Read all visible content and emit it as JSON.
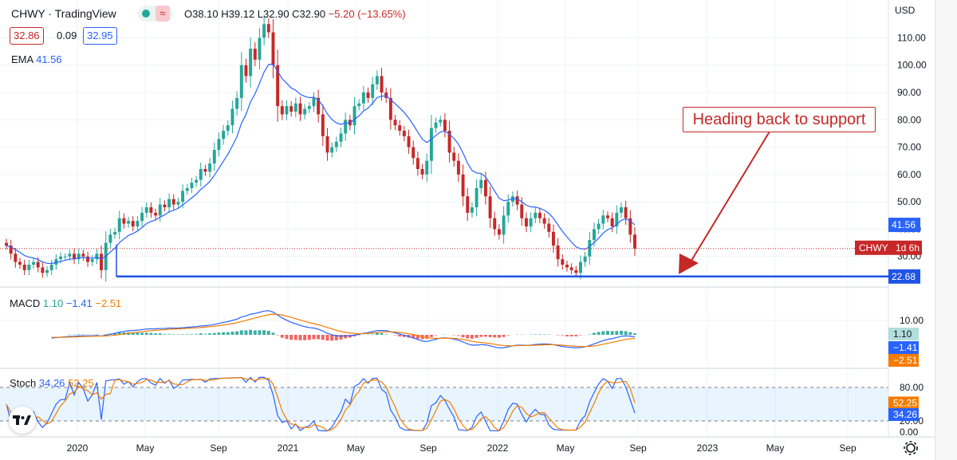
{
  "header": {
    "symbol_line": "CHWY · TradingView",
    "ohlc": "O38.10 H39.12 L32.90 C32.90",
    "change": "−5.20 (−13.65%)",
    "bid": "32.86",
    "spread": "0.09",
    "ask": "32.95",
    "ema_label": "EMA",
    "ema_value": "41.56",
    "pill_icon": "waves-icon"
  },
  "annotation": {
    "text": "Heading back to support"
  },
  "indicators": {
    "macd_label": "MACD",
    "macd_values": [
      "1.10",
      "−1.41",
      "−2.51"
    ],
    "stoch_label": "Stoch",
    "stoch_values": [
      "34.26",
      "52.25"
    ]
  },
  "colors": {
    "up": "#26a69a",
    "down": "#c62828",
    "ema": "#2962ff",
    "support": "#1e53e5",
    "macd": "#2962ff",
    "signal": "#f57c00",
    "stoch_k": "#2962ff",
    "stoch_d": "#f57c00"
  },
  "chart_data": [
    {
      "type": "candlestick",
      "symbol": "CHWY",
      "interval": "1 week",
      "x_ticks": [
        "2020",
        "May",
        "Sep",
        "2021",
        "May",
        "Sep",
        "2022",
        "May",
        "Sep",
        "2023",
        "May",
        "Sep"
      ],
      "currency": "USD",
      "y_ticks": [
        30,
        40,
        50,
        60,
        70,
        80,
        90,
        100,
        110
      ],
      "ylim": [
        20,
        118
      ],
      "closes": [
        34,
        31,
        28,
        27,
        25,
        27,
        28,
        26,
        24,
        25,
        27,
        29,
        30,
        30,
        31,
        29,
        31,
        30,
        28,
        29,
        31,
        25,
        35,
        38,
        39,
        44,
        42,
        43,
        41,
        43,
        46,
        48,
        46,
        45,
        49,
        48,
        51,
        49,
        50,
        54,
        55,
        57,
        58,
        62,
        61,
        64,
        69,
        73,
        76,
        78,
        84,
        88,
        100,
        96,
        106,
        102,
        110,
        115,
        112,
        100,
        85,
        82,
        85,
        83,
        86,
        82,
        84,
        85,
        88,
        82,
        74,
        68,
        70,
        72,
        75,
        80,
        78,
        85,
        86,
        90,
        88,
        93,
        96,
        90,
        88,
        80,
        78,
        76,
        74,
        70,
        66,
        62,
        60,
        65,
        77,
        79,
        80,
        76,
        68,
        65,
        60,
        52,
        46,
        48,
        55,
        58,
        52,
        44,
        40,
        38,
        45,
        50,
        52,
        49,
        44,
        41,
        44,
        46,
        44,
        42,
        39,
        34,
        29,
        27,
        26,
        25,
        24,
        28,
        30,
        36,
        40,
        42,
        45,
        44,
        41,
        46,
        48,
        44,
        38,
        32.9
      ],
      "ema_last": 41.56,
      "last_price": 32.9,
      "last_label": "CHWY",
      "last_tag": "1d 6h",
      "ema_tag": "41.56",
      "support_level": 22.68,
      "support_tag": "22.68"
    },
    {
      "type": "macd",
      "y_ticks": [
        0,
        10
      ],
      "tags": [
        "1.10",
        "−1.41",
        "−2.51"
      ],
      "last": {
        "histogram": 1.1,
        "macd": -1.41,
        "signal": -2.51
      }
    },
    {
      "type": "stochastic",
      "y_ticks": [
        0,
        20,
        80
      ],
      "tick_labels": [
        "0.00",
        "20.00",
        "80.00"
      ],
      "levels": [
        20,
        80
      ],
      "tags": [
        "52.25",
        "34.26"
      ],
      "last": {
        "k": 34.26,
        "d": 52.25
      }
    }
  ]
}
